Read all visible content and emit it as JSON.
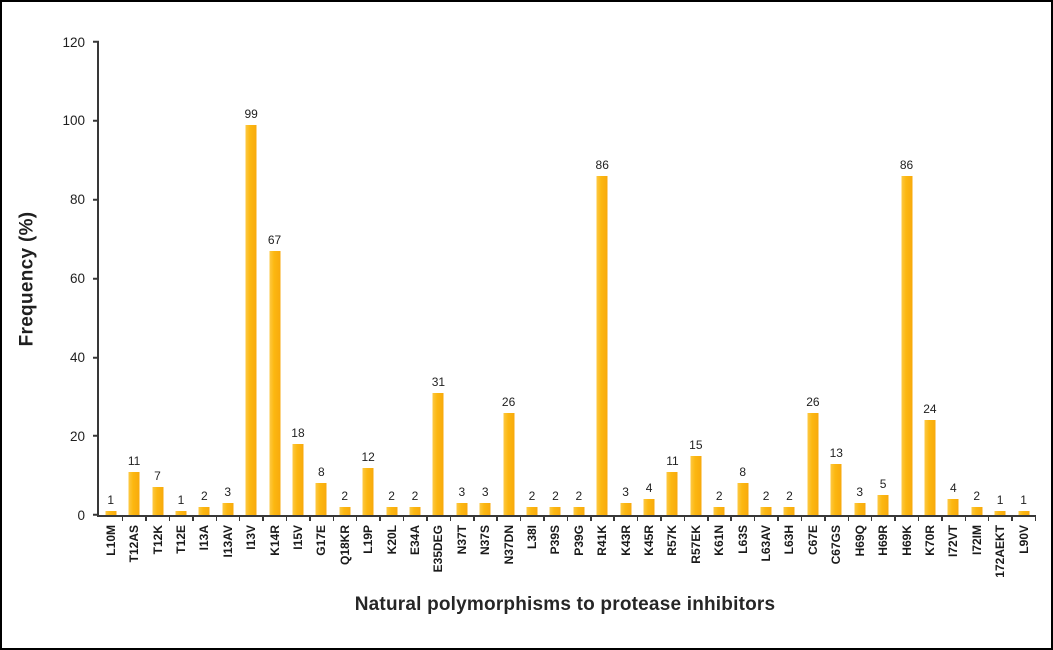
{
  "chart_data": {
    "type": "bar",
    "title": "",
    "xlabel": "Natural polymorphisms to protease inhibitors",
    "ylabel": "Frequency (%)",
    "ylim": [
      0,
      120
    ],
    "yticks": [
      0,
      20,
      40,
      60,
      80,
      100,
      120
    ],
    "grid": false,
    "legend_position": "none",
    "bar_color": "#FCB811",
    "categories": [
      "L10M",
      "T12AS",
      "T12K",
      "T12E",
      "I13A",
      "I13AV",
      "I13V",
      "K14R",
      "I15V",
      "G17E",
      "Q18KR",
      "L19P",
      "K20L",
      "E34A",
      "E35DEG",
      "N37T",
      "N37S",
      "N37DN",
      "L38I",
      "P39S",
      "P39G",
      "R41K",
      "K43R",
      "K45R",
      "R57K",
      "R57EK",
      "K61N",
      "L63S",
      "L63AV",
      "L63H",
      "C67E",
      "C67GS",
      "H69Q",
      "H69R",
      "H69K",
      "K70R",
      "I72VT",
      "I72IM",
      "172AEKT",
      "L90V"
    ],
    "values": [
      1,
      11,
      7,
      1,
      2,
      3,
      99,
      67,
      18,
      8,
      2,
      12,
      2,
      2,
      31,
      3,
      3,
      26,
      2,
      2,
      2,
      86,
      3,
      4,
      11,
      15,
      2,
      8,
      2,
      2,
      26,
      13,
      3,
      5,
      86,
      24,
      4,
      2,
      1,
      1
    ]
  },
  "colors": {
    "background": "#ffffff",
    "frame_border": "#000000",
    "axis": "#383838",
    "text": "#1f1f1f",
    "bar": "#FCB811"
  }
}
